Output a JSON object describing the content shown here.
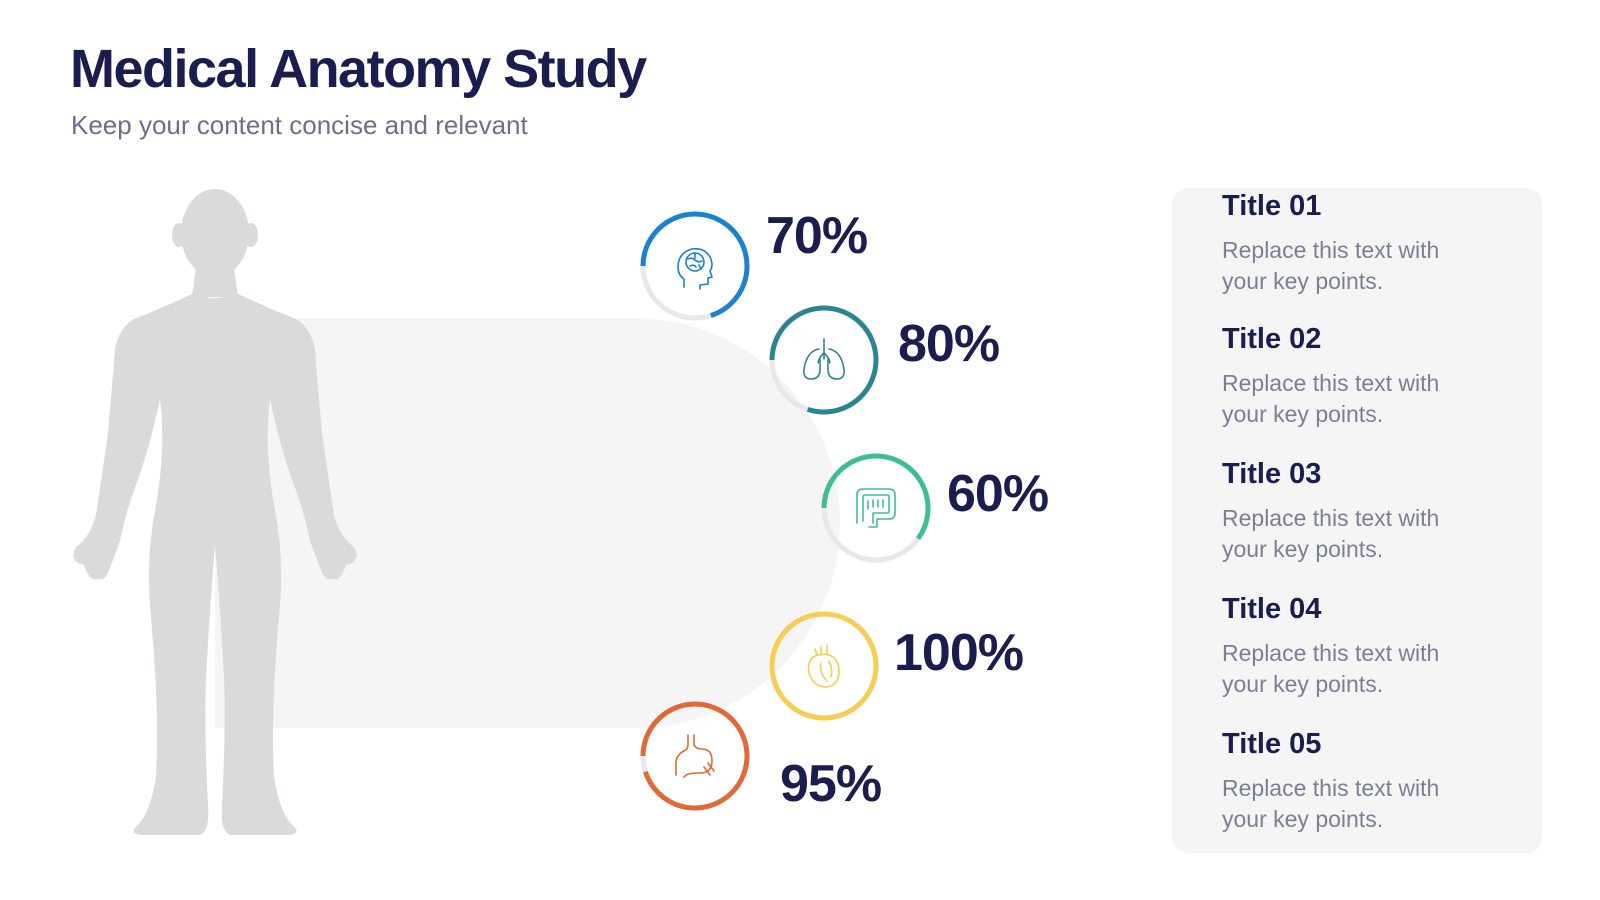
{
  "header": {
    "title": "Medical Anatomy Study",
    "subtitle": "Keep your content concise and relevant"
  },
  "organs": [
    {
      "icon": "brain-head-icon",
      "percent_label": "70%",
      "value": 70,
      "color": "#1b82cf"
    },
    {
      "icon": "lungs-icon",
      "percent_label": "80%",
      "value": 80,
      "color": "#2a8493"
    },
    {
      "icon": "intestines-icon",
      "percent_label": "60%",
      "value": 60,
      "color": "#3dbf92"
    },
    {
      "icon": "heart-icon",
      "percent_label": "100%",
      "value": 100,
      "color": "#f5ce52"
    },
    {
      "icon": "stomach-icon",
      "percent_label": "95%",
      "value": 95,
      "color": "#e06a37"
    }
  ],
  "panel": {
    "items": [
      {
        "title": "Title 01",
        "text": "Replace this text with your key points."
      },
      {
        "title": "Title 02",
        "text": "Replace this text with your key points."
      },
      {
        "title": "Title 03",
        "text": "Replace this text with your key points."
      },
      {
        "title": "Title 04",
        "text": "Replace this text with your key points."
      },
      {
        "title": "Title 05",
        "text": "Replace this text with your key points."
      }
    ]
  },
  "colors": {
    "heading": "#1a1d4e",
    "subtext": "#6b7088",
    "ring_track": "#e8e8ea",
    "silhouette": "#d9dadc",
    "panel_bg": "#f5f5f6"
  }
}
